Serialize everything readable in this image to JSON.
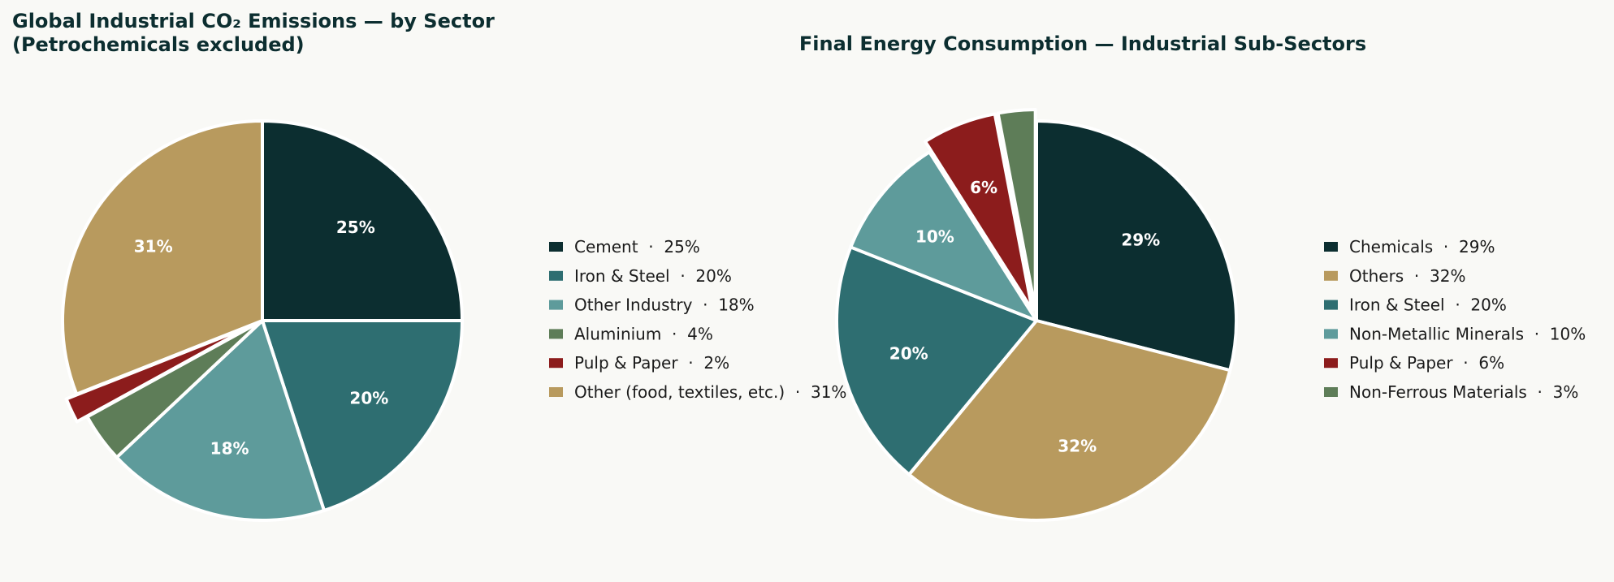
{
  "chart_data": [
    {
      "type": "pie",
      "title_lines": [
        "Global Industrial CO₂ Emissions — by Sector",
        "(Petrochemicals excluded)"
      ],
      "start_angle": "top",
      "direction": "clockwise",
      "slices": [
        {
          "label": "Cement",
          "value": 25,
          "color": "#0c2e30",
          "exploded": false
        },
        {
          "label": "Iron & Steel",
          "value": 20,
          "color": "#2e6e71",
          "exploded": false
        },
        {
          "label": "Other Industry",
          "value": 18,
          "color": "#5e9b9b",
          "exploded": false
        },
        {
          "label": "Aluminium",
          "value": 4,
          "color": "#5e7d58",
          "exploded": false
        },
        {
          "label": "Pulp & Paper",
          "value": 2,
          "color": "#8c1c1c",
          "exploded": true
        },
        {
          "label": "Other (food, textiles, etc.)",
          "value": 31,
          "color": "#b89a5e",
          "exploded": false
        }
      ],
      "slice_labels": [
        "25%",
        "20%",
        "18%",
        "",
        "",
        "31%"
      ],
      "legend_entries": [
        "Cement  ·  25%",
        "Iron & Steel  ·  20%",
        "Other Industry  ·  18%",
        "Aluminium  ·  4%",
        "Pulp & Paper  ·  2%",
        "Other (food, textiles, etc.)  ·  31%"
      ],
      "legend_placement": "right"
    },
    {
      "type": "pie",
      "title_lines": [
        "Final Energy Consumption — Industrial Sub-Sectors"
      ],
      "start_angle": "top",
      "direction": "clockwise",
      "slices": [
        {
          "label": "Chemicals",
          "value": 29,
          "color": "#0c2e30",
          "exploded": false
        },
        {
          "label": "Others",
          "value": 32,
          "color": "#b89a5e",
          "exploded": false
        },
        {
          "label": "Iron & Steel",
          "value": 20,
          "color": "#2e6e71",
          "exploded": false
        },
        {
          "label": "Non-Metallic Minerals",
          "value": 10,
          "color": "#5e9b9b",
          "exploded": false
        },
        {
          "label": "Pulp & Paper",
          "value": 6,
          "color": "#8c1c1c",
          "exploded": true
        },
        {
          "label": "Non-Ferrous Materials",
          "value": 3,
          "color": "#5e7d58",
          "exploded": true
        }
      ],
      "slice_labels": [
        "29%",
        "32%",
        "20%",
        "10%",
        "6%",
        ""
      ],
      "legend_entries": [
        "Chemicals  ·  29%",
        "Others  ·  32%",
        "Iron & Steel  ·  20%",
        "Non-Metallic Minerals  ·  10%",
        "Pulp & Paper  ·  6%",
        "Non-Ferrous Materials  ·  3%"
      ],
      "legend_placement": "right"
    }
  ]
}
